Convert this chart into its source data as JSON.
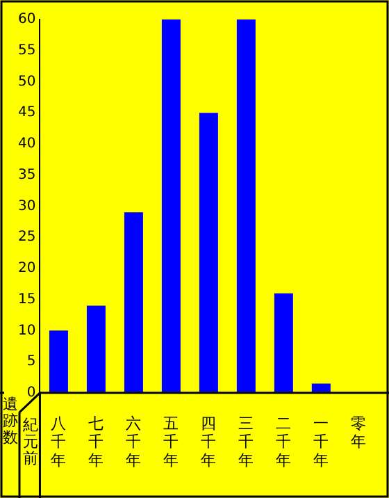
{
  "chart_data": {
    "type": "bar",
    "ylabel": "遺跡数",
    "xlabel": "紀元前",
    "categories": [
      "八千年",
      "七千年",
      "六千年",
      "五千年",
      "四千年",
      "三千年",
      "二千年",
      "一千年",
      "零年"
    ],
    "values": [
      10,
      14,
      29,
      60,
      45,
      60,
      16,
      1.5,
      null
    ],
    "color": "#0000ff",
    "ylim": [
      0,
      60
    ],
    "yticks": [
      0,
      5,
      10,
      15,
      20,
      25,
      30,
      35,
      40,
      45,
      50,
      55,
      60
    ],
    "grid": false,
    "legend": false
  }
}
